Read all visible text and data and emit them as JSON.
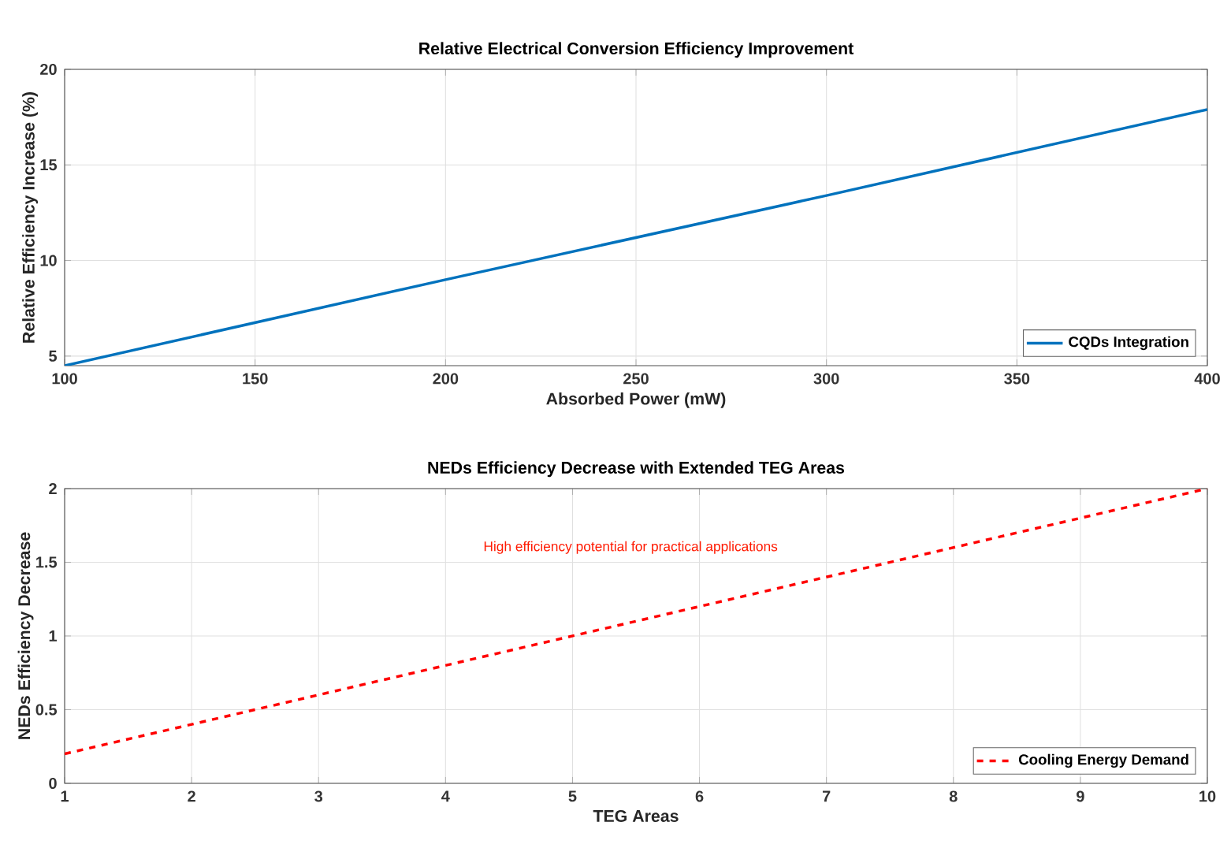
{
  "chart_data": [
    {
      "type": "line",
      "title": "Relative Electrical Conversion Efficiency Improvement",
      "xlabel": "Absorbed Power (mW)",
      "ylabel": "Relative Efficiency Increase (%)",
      "x": [
        100,
        200,
        300,
        400
      ],
      "series": [
        {
          "name": "CQDs Integration",
          "color": "#0072bd",
          "values": [
            4.5,
            9,
            13.4,
            17.9
          ],
          "line_style": "solid"
        }
      ],
      "xlim": [
        100,
        400
      ],
      "ylim": [
        4.5,
        20
      ],
      "xticks": [
        100,
        150,
        200,
        250,
        300,
        350,
        400
      ],
      "yticks": [
        5,
        10,
        15,
        20
      ],
      "grid": true,
      "legend": "bottom right",
      "marker": "none"
    },
    {
      "type": "line",
      "title": "NEDs Efficiency Decrease with Extended TEG Areas",
      "xlabel": "TEG Areas",
      "ylabel": "NEDs Efficiency Decrease",
      "x": [
        1,
        10
      ],
      "series": [
        {
          "name": "Cooling Energy Demand",
          "color": "#ff0000",
          "values": [
            0.2,
            2
          ],
          "line_style": "dashed"
        }
      ],
      "xlim": [
        1,
        10
      ],
      "ylim": [
        0,
        2
      ],
      "xticks": [
        1,
        2,
        3,
        4,
        5,
        6,
        7,
        8,
        9,
        10
      ],
      "yticks": [
        0,
        0.5,
        1,
        1.5,
        2
      ],
      "annotations": [
        "High efficiency potential for practical applications"
      ],
      "grid": true,
      "legend": "bottom right",
      "marker": "none"
    }
  ]
}
